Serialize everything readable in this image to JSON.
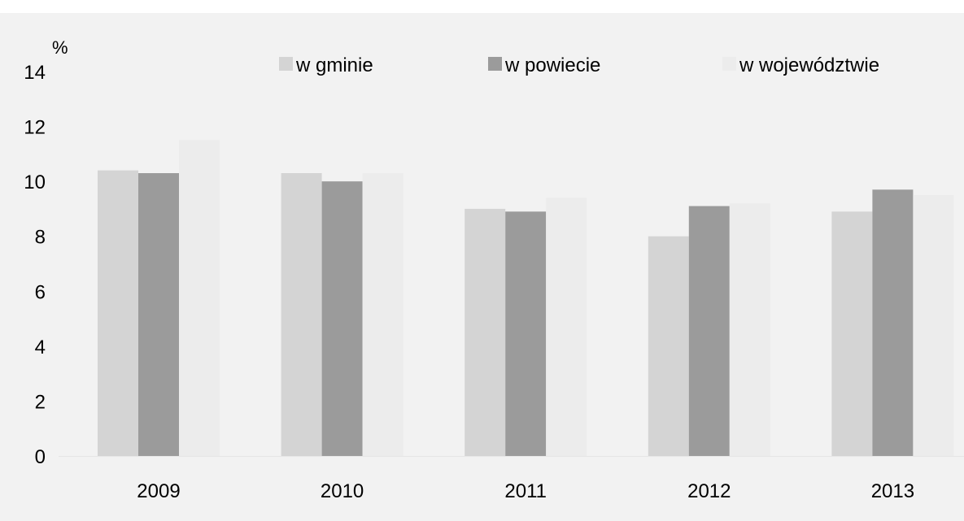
{
  "chart_data": {
    "type": "bar",
    "title": "",
    "xlabel": "",
    "ylabel": "%",
    "ylim": [
      0,
      14
    ],
    "yticks": [
      0,
      2,
      4,
      6,
      8,
      10,
      12,
      14
    ],
    "grid": false,
    "legend_position": "top",
    "categories": [
      "2009",
      "2010",
      "2011",
      "2012",
      "2013"
    ],
    "series": [
      {
        "name": "w gminie",
        "color": "#d4d4d4",
        "values": [
          10.4,
          10.3,
          9.0,
          8.0,
          8.9
        ]
      },
      {
        "name": "w powiecie",
        "color": "#9b9b9b",
        "values": [
          10.3,
          10.0,
          8.9,
          9.1,
          9.7
        ]
      },
      {
        "name": "w województwie",
        "color": "#ececec",
        "values": [
          11.5,
          10.3,
          9.4,
          9.2,
          9.5
        ]
      }
    ]
  }
}
